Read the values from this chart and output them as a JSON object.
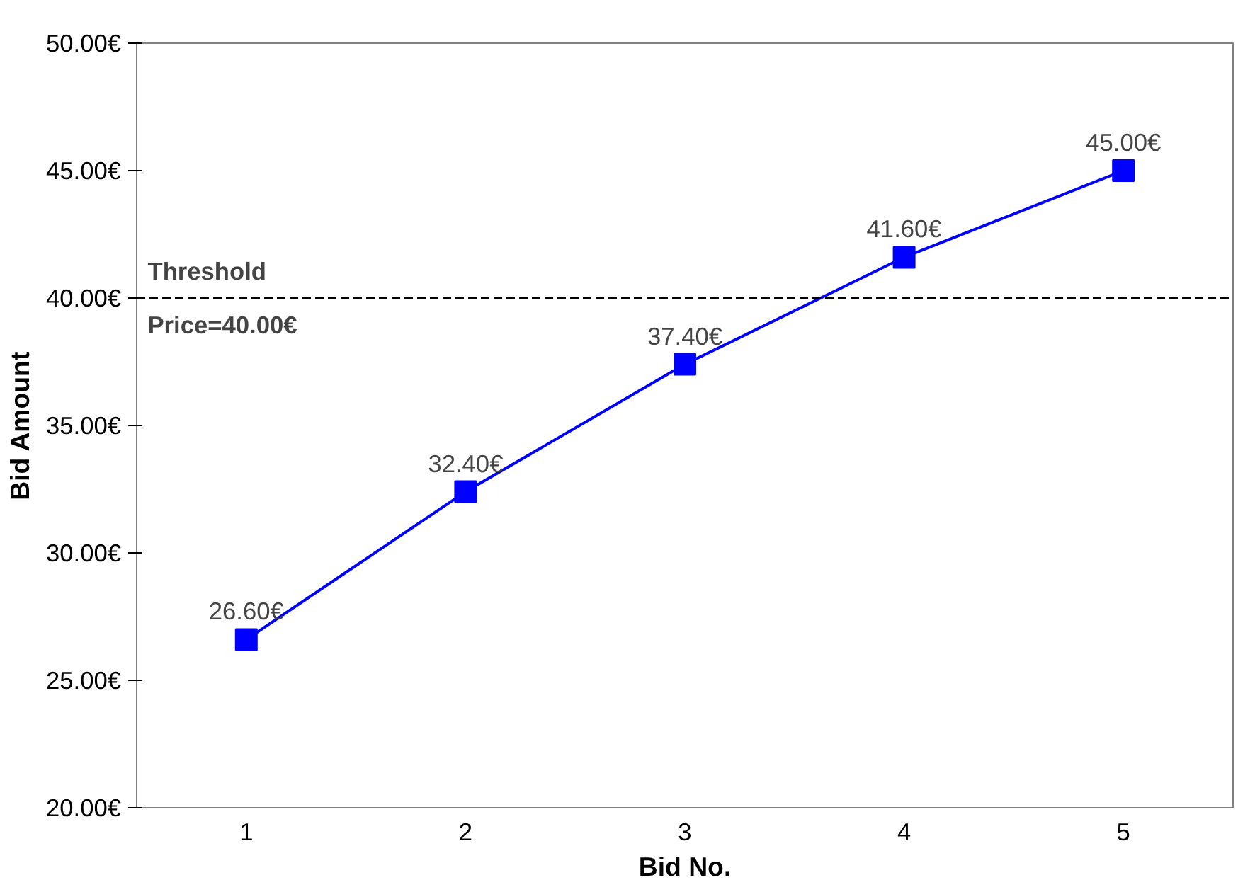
{
  "chart_data": {
    "type": "line",
    "xlabel": "Bid No.",
    "ylabel": "Bid Amount",
    "categories": [
      "1",
      "2",
      "3",
      "4",
      "5"
    ],
    "series": [
      {
        "color": "#0000ff",
        "values": [
          26.6,
          32.4,
          37.4,
          41.6,
          45.0
        ],
        "value_labels": [
          "26.60€",
          "32.40€",
          "37.40€",
          "41.60€",
          "45.00€"
        ]
      }
    ],
    "ylim": [
      20,
      50
    ],
    "yticks": [
      {
        "value": 20,
        "label": "20.00€"
      },
      {
        "value": 25,
        "label": "25.00€"
      },
      {
        "value": 30,
        "label": "30.00€"
      },
      {
        "value": 35,
        "label": "35.00€"
      },
      {
        "value": 40,
        "label": "40.00€"
      },
      {
        "value": 45,
        "label": "45.00€"
      },
      {
        "value": 50,
        "label": "50.00€"
      }
    ],
    "ref_lines": [
      {
        "axis": "y",
        "value": 40,
        "label": "Threshold\nPrice=40.00€",
        "color": "#000000",
        "line_style": "dashed"
      }
    ],
    "marker": "square",
    "line_style": "solid",
    "grid": false
  }
}
